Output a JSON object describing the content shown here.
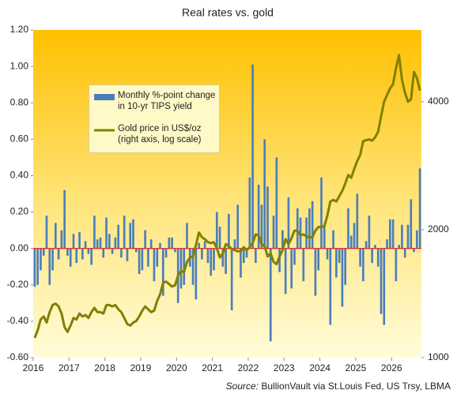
{
  "chart_data": {
    "type": "bar_line",
    "title": "Real rates vs. gold",
    "source_label": "Source:",
    "source": "BullionVault via St.Louis Fed, US Trsy, LBMA",
    "categories": [
      "2016",
      null,
      null,
      null,
      null,
      null,
      null,
      null,
      null,
      null,
      null,
      null,
      "2017",
      null,
      null,
      null,
      null,
      null,
      null,
      null,
      null,
      null,
      null,
      null,
      "2018",
      null,
      null,
      null,
      null,
      null,
      null,
      null,
      null,
      null,
      null,
      null,
      "2019",
      null,
      null,
      null,
      null,
      null,
      null,
      null,
      null,
      null,
      null,
      null,
      "2020",
      null,
      null,
      null,
      null,
      null,
      null,
      null,
      null,
      null,
      null,
      null,
      "2021",
      null,
      null,
      null,
      null,
      null,
      null,
      null,
      null,
      null,
      null,
      null,
      "2022",
      null,
      null,
      null,
      null,
      null,
      null,
      null,
      null,
      null,
      null,
      null,
      "2023",
      null,
      null,
      null,
      null,
      null,
      null,
      null,
      null,
      null,
      null,
      null,
      "2024",
      null,
      null,
      null,
      null,
      null,
      null,
      null,
      null,
      null,
      null,
      null,
      "2025",
      null,
      null,
      null,
      null,
      null,
      null,
      null,
      null,
      null,
      null,
      null,
      "2026",
      null,
      null,
      null,
      null,
      null,
      null,
      null,
      null,
      null
    ],
    "series": [
      {
        "name": "Monthly %-point change\nin 10-yr TIPS yield",
        "type": "bar",
        "color": "#4a7ebb",
        "axis": "y",
        "values": [
          -0.21,
          -0.2,
          -0.12,
          -0.04,
          0.18,
          -0.2,
          -0.12,
          0.14,
          -0.06,
          0.1,
          0.32,
          -0.04,
          -0.1,
          0.08,
          -0.08,
          0.09,
          -0.06,
          0.04,
          -0.03,
          -0.09,
          0.18,
          0.05,
          0.06,
          -0.05,
          0.17,
          0.08,
          -0.03,
          0.06,
          0.13,
          -0.05,
          0.18,
          -0.07,
          0.14,
          0.16,
          -0.02,
          -0.14,
          -0.12,
          0.1,
          -0.1,
          0.05,
          -0.18,
          -0.1,
          0.03,
          -0.26,
          -0.05,
          0.06,
          0.06,
          -0.02,
          -0.3,
          -0.22,
          -0.2,
          0.14,
          -0.1,
          -0.2,
          -0.28,
          0.03,
          -0.06,
          0.04,
          -0.08,
          -0.15,
          -0.12,
          0.2,
          0.12,
          -0.1,
          -0.14,
          0.19,
          -0.34,
          0.05,
          0.24,
          -0.16,
          -0.08,
          -0.05,
          0.39,
          1.01,
          -0.08,
          0.35,
          0.24,
          0.6,
          0.34,
          -0.51,
          0.18,
          0.5,
          -0.13,
          0.1,
          -0.25,
          0.28,
          -0.22,
          -0.09,
          0.22,
          0.17,
          -0.18,
          0.17,
          0.22,
          0.26,
          -0.26,
          -0.12,
          0.39,
          0.12,
          -0.06,
          -0.42,
          0.1,
          -0.16,
          -0.08,
          -0.32,
          -0.2,
          0.22,
          0.07,
          0.14,
          0.3,
          -0.1,
          -0.18,
          0.04,
          0.18,
          -0.08,
          0.02,
          -0.1,
          -0.36,
          -0.42,
          0.05,
          0.16,
          0.16,
          -0.18,
          0.02,
          0.13,
          -0.05,
          0.13,
          0.27,
          -0.02,
          0.1,
          0.44
        ]
      },
      {
        "name": "Gold price in US$/oz\n(right axis, log scale)",
        "type": "line",
        "color": "#808000",
        "axis": "y2",
        "values": [
          1113,
          1160,
          1230,
          1250,
          1210,
          1280,
          1330,
          1340,
          1320,
          1270,
          1180,
          1150,
          1190,
          1240,
          1230,
          1270,
          1250,
          1260,
          1240,
          1280,
          1310,
          1280,
          1280,
          1270,
          1330,
          1330,
          1320,
          1330,
          1300,
          1280,
          1240,
          1200,
          1190,
          1210,
          1220,
          1250,
          1290,
          1320,
          1300,
          1280,
          1290,
          1360,
          1410,
          1500,
          1510,
          1490,
          1470,
          1480,
          1560,
          1600,
          1590,
          1680,
          1720,
          1730,
          1840,
          1970,
          1920,
          1900,
          1870,
          1860,
          1870,
          1810,
          1720,
          1760,
          1850,
          1830,
          1800,
          1790,
          1780,
          1780,
          1820,
          1790,
          1820,
          1860,
          1950,
          1940,
          1850,
          1830,
          1730,
          1760,
          1680,
          1660,
          1730,
          1790,
          1900,
          1850,
          1910,
          1990,
          1990,
          1940,
          1950,
          1930,
          1920,
          1920,
          1990,
          2030,
          2030,
          2040,
          2160,
          2330,
          2350,
          2330,
          2400,
          2470,
          2570,
          2690,
          2650,
          2780,
          2900,
          3000,
          3230,
          3250,
          3260,
          3240,
          3300,
          3400,
          3700,
          4000,
          4150,
          4300,
          4400,
          4800,
          5150,
          4500,
          4200,
          4000,
          4050,
          4700,
          4550,
          4250
        ]
      }
    ],
    "ylim": [
      -0.6,
      1.2
    ],
    "yticks": [
      {
        "value": -0.6,
        "label": "-0.60"
      },
      {
        "value": -0.4,
        "label": "-0.40"
      },
      {
        "value": -0.2,
        "label": "-0.20"
      },
      {
        "value": 0,
        "label": "0.00"
      },
      {
        "value": 0.2,
        "label": "0.20"
      },
      {
        "value": 0.4,
        "label": "0.40"
      },
      {
        "value": 0.6,
        "label": "0.60"
      },
      {
        "value": 0.8,
        "label": "0.80"
      },
      {
        "value": 1.0,
        "label": "1.00"
      },
      {
        "value": 1.2,
        "label": "1.20"
      }
    ],
    "y2lim": [
      1000,
      5900
    ],
    "y2ticks": [
      1000,
      2000,
      4000
    ],
    "y2_log_scale": true,
    "zero_line_color": "#e02020",
    "legend": "upper left"
  }
}
